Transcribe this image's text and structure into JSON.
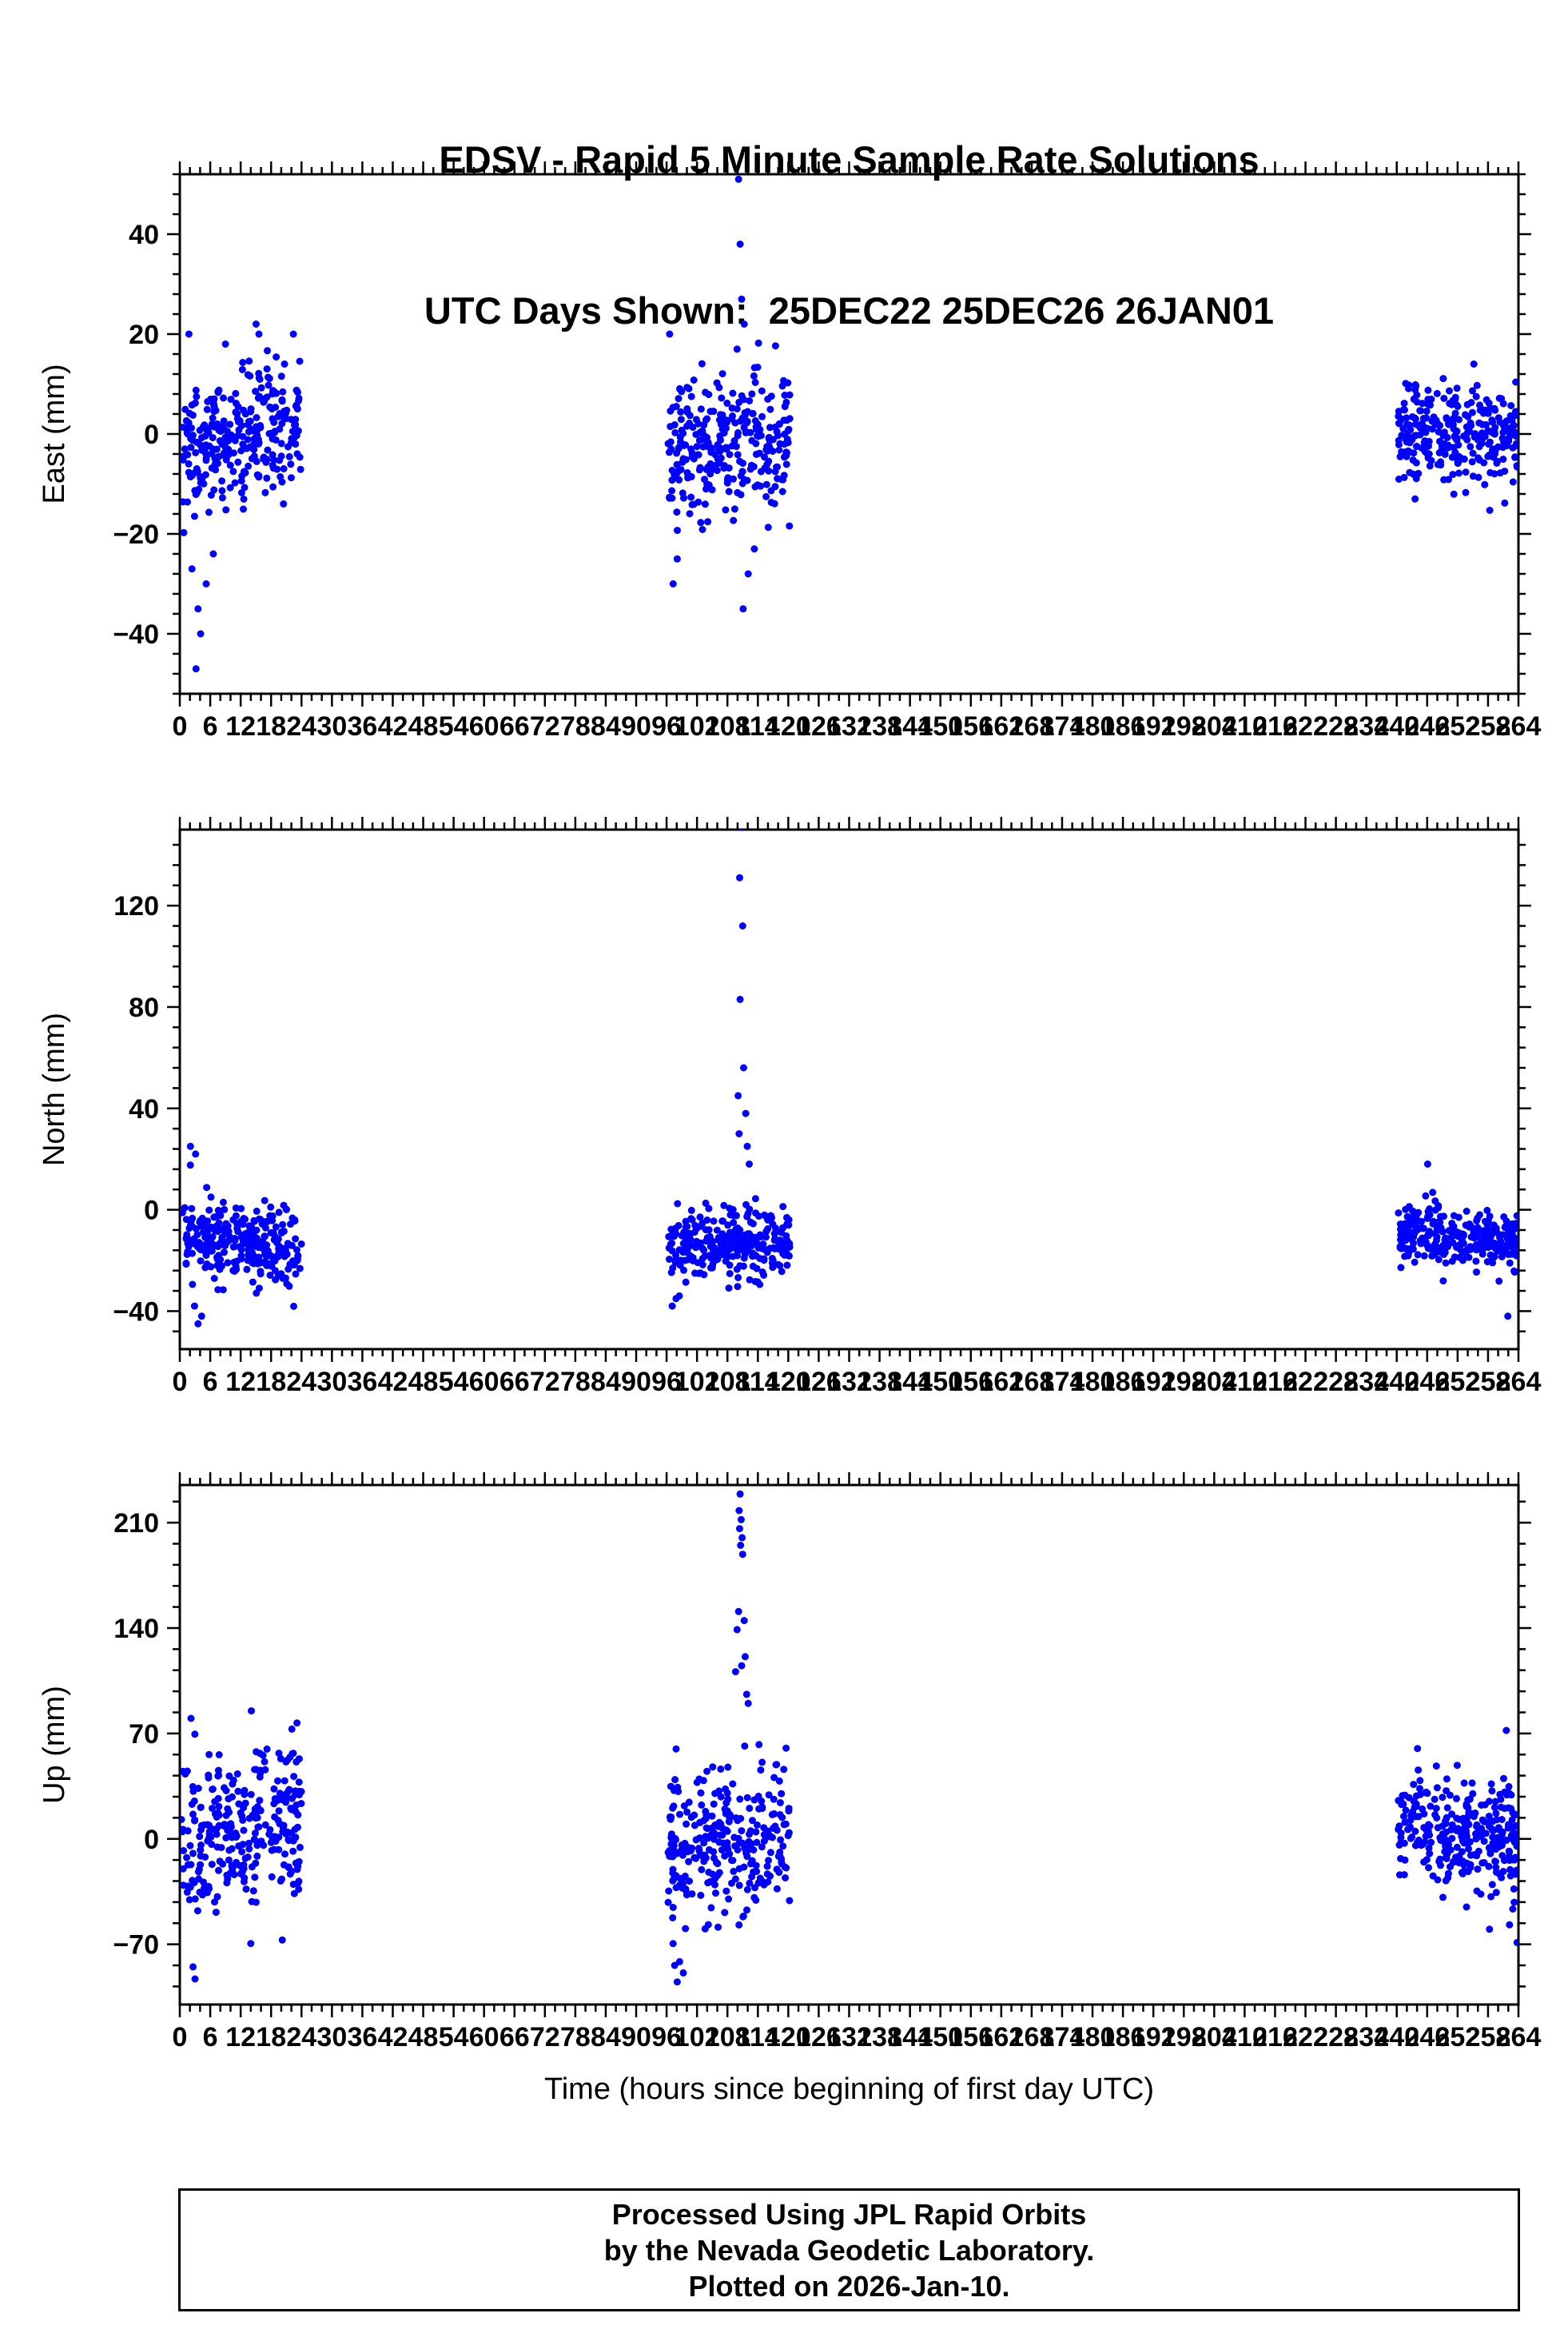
{
  "title": {
    "line1": "EDSV - Rapid 5 Minute Sample Rate Solutions",
    "line2": "UTC Days Shown:  25DEC22 25DEC26 26JAN01"
  },
  "footer": {
    "line1": "Processed Using JPL Rapid Orbits",
    "line2": "by the Nevada Geodetic Laboratory.",
    "line3": "Plotted on 2026-Jan-10."
  },
  "style": {
    "marker_color": "#0000ff",
    "axis_color": "#000000",
    "marker_radius": 4.5
  },
  "chart_data": [
    {
      "type": "scatter",
      "id": "east",
      "ylabel": "East (mm)",
      "ylim": [
        -52,
        52
      ],
      "yticks": [
        -40,
        -20,
        0,
        20,
        40
      ],
      "y_minor_step": 4,
      "xlim": [
        0,
        264
      ],
      "x_major_step": 6,
      "x_minor_step": 2,
      "grid": false,
      "clusters": [
        {
          "x0": 0.3,
          "x1": 24.0,
          "n": 288,
          "trend": [
            -4,
            4
          ],
          "std": 6.5,
          "seed": 101
        },
        {
          "x0": 96.3,
          "x1": 120.3,
          "n": 288,
          "trend": [
            -3,
            -1
          ],
          "std": 7,
          "seed": 102
        },
        {
          "x0": 240.3,
          "x1": 263.8,
          "n": 288,
          "trend": [
            0,
            0
          ],
          "std": 4.5,
          "seed": 103
        }
      ],
      "outliers": [
        [
          3.2,
          -47
        ],
        [
          4.1,
          -40
        ],
        [
          3.6,
          -35
        ],
        [
          5.2,
          -30
        ],
        [
          2.4,
          -27
        ],
        [
          6.6,
          -24
        ],
        [
          1.8,
          20
        ],
        [
          15.6,
          20
        ],
        [
          22.4,
          20
        ],
        [
          9.0,
          18
        ],
        [
          110.2,
          51
        ],
        [
          110.5,
          38
        ],
        [
          110.8,
          27
        ],
        [
          111.3,
          22
        ],
        [
          96.6,
          20
        ],
        [
          109.9,
          17
        ],
        [
          111.1,
          -35
        ],
        [
          97.3,
          -30
        ],
        [
          112.1,
          -28
        ],
        [
          98.1,
          -25
        ],
        [
          113.3,
          -23
        ],
        [
          243.6,
          -13
        ],
        [
          255.2,
          14
        ]
      ]
    },
    {
      "type": "scatter",
      "id": "north",
      "ylabel": "North (mm)",
      "ylim": [
        -55,
        150
      ],
      "yticks": [
        -40,
        0,
        40,
        80,
        120
      ],
      "y_minor_step": 8,
      "xlim": [
        0,
        264
      ],
      "x_major_step": 6,
      "x_minor_step": 2,
      "grid": false,
      "clusters": [
        {
          "x0": 0.3,
          "x1": 24.0,
          "n": 288,
          "trend": [
            -12,
            -16
          ],
          "std": 7.5,
          "seed": 201
        },
        {
          "x0": 96.3,
          "x1": 120.3,
          "n": 288,
          "trend": [
            -14,
            -12
          ],
          "std": 7,
          "seed": 202
        },
        {
          "x0": 240.3,
          "x1": 263.8,
          "n": 288,
          "trend": [
            -10,
            -13
          ],
          "std": 5.5,
          "seed": 203
        }
      ],
      "outliers": [
        [
          2.1,
          25
        ],
        [
          3.1,
          22
        ],
        [
          3.6,
          -45
        ],
        [
          4.3,
          -42
        ],
        [
          2.9,
          -38
        ],
        [
          110.6,
          151
        ],
        [
          110.4,
          131
        ],
        [
          111.0,
          112
        ],
        [
          110.5,
          83
        ],
        [
          111.2,
          56
        ],
        [
          110.1,
          45
        ],
        [
          111.6,
          38
        ],
        [
          110.3,
          30
        ],
        [
          111.9,
          25
        ],
        [
          112.3,
          18
        ],
        [
          97.1,
          -38
        ],
        [
          98.5,
          -34
        ],
        [
          261.9,
          -42
        ],
        [
          246.1,
          18
        ]
      ]
    },
    {
      "type": "scatter",
      "id": "up",
      "ylabel": "Up (mm)",
      "xlabel": "Time (hours since beginning of first day UTC)",
      "ylim": [
        -110,
        235
      ],
      "yticks": [
        -70,
        0,
        70,
        140,
        210
      ],
      "y_minor_step": 14,
      "xlim": [
        0,
        264
      ],
      "x_major_step": 6,
      "x_minor_step": 2,
      "grid": false,
      "clusters": [
        {
          "x0": 0.3,
          "x1": 24.0,
          "n": 288,
          "trend": [
            -6,
            18
          ],
          "std": 26,
          "seed": 301
        },
        {
          "x0": 96.3,
          "x1": 120.3,
          "n": 288,
          "trend": [
            -6,
            2
          ],
          "std": 26,
          "seed": 302
        },
        {
          "x0": 240.3,
          "x1": 263.8,
          "n": 288,
          "trend": [
            14,
            -6
          ],
          "std": 19,
          "seed": 303
        }
      ],
      "outliers": [
        [
          3.0,
          -93
        ],
        [
          2.6,
          -85
        ],
        [
          14.1,
          85
        ],
        [
          2.2,
          80
        ],
        [
          23.1,
          77
        ],
        [
          110.5,
          229
        ],
        [
          110.3,
          218
        ],
        [
          110.7,
          212
        ],
        [
          110.4,
          206
        ],
        [
          110.9,
          200
        ],
        [
          110.6,
          195
        ],
        [
          111.0,
          189
        ],
        [
          110.2,
          151
        ],
        [
          111.3,
          145
        ],
        [
          109.9,
          139
        ],
        [
          111.5,
          121
        ],
        [
          110.8,
          115
        ],
        [
          109.6,
          111
        ],
        [
          111.8,
          96
        ],
        [
          112.1,
          90
        ],
        [
          98.1,
          -95
        ],
        [
          99.3,
          -89
        ],
        [
          97.6,
          -84
        ],
        [
          261.6,
          72
        ],
        [
          244.1,
          60
        ],
        [
          258.3,
          -60
        ]
      ]
    }
  ]
}
